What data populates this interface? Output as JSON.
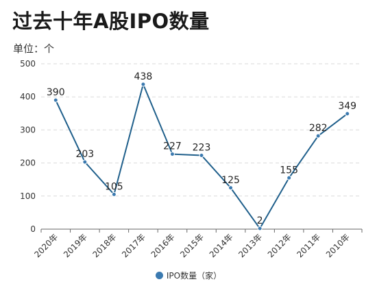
{
  "unit_label": "单位：个",
  "chart_data": {
    "type": "line",
    "title": "过去十年A股IPO数量",
    "categories": [
      "2020年",
      "2019年",
      "2018年",
      "2017年",
      "2016年",
      "2015年",
      "2014年",
      "2013年",
      "2012年",
      "2011年",
      "2010年"
    ],
    "series": [
      {
        "name": "IPO数量（家）",
        "values": [
          390,
          203,
          105,
          438,
          227,
          223,
          125,
          2,
          155,
          282,
          349
        ]
      }
    ],
    "ylim": [
      0,
      500
    ],
    "yticks": [
      0,
      100,
      200,
      300,
      400,
      500
    ],
    "grid": true,
    "legend_position": "bottom-center",
    "line_color": "#1f5f8b",
    "marker_color": "#3b7ab0"
  }
}
